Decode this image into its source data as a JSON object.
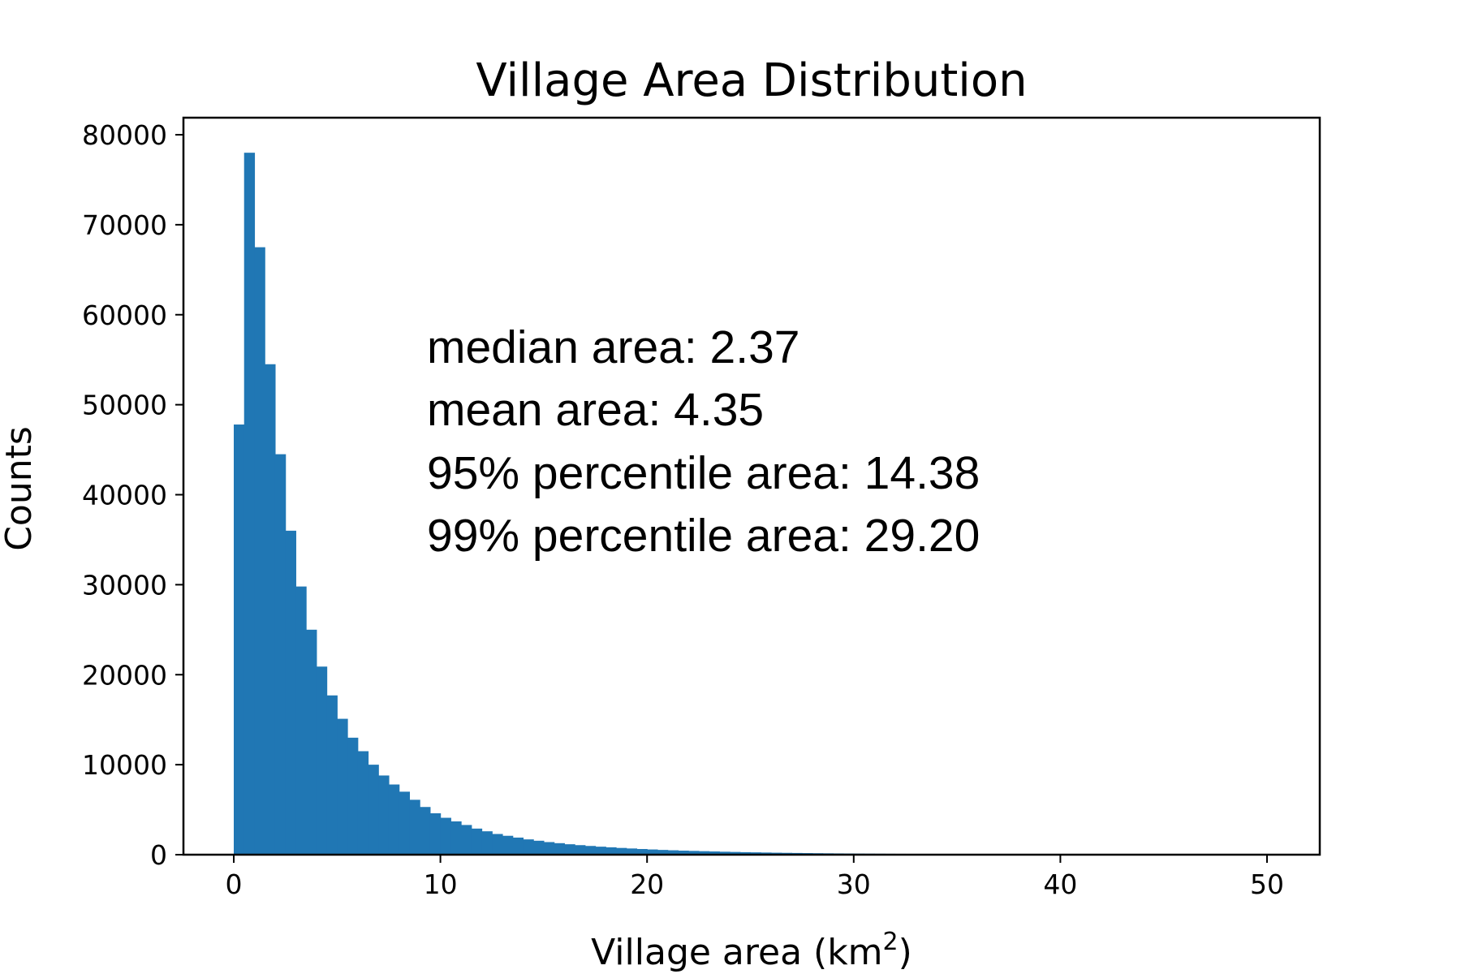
{
  "chart_data": {
    "type": "bar",
    "title": "Village Area Distribution",
    "xlabel": "Village area (km",
    "xlabel_sup": "2",
    "xlabel_end": ")",
    "ylabel": "Counts",
    "xlim": [
      -2.5,
      52.5
    ],
    "ylim": [
      0,
      80000
    ],
    "xticks": [
      0,
      10,
      20,
      30,
      40,
      50
    ],
    "yticks": [
      0,
      10000,
      20000,
      30000,
      40000,
      50000,
      60000,
      70000,
      80000
    ],
    "bin_width": 0.5,
    "bin_start": 0,
    "color": "#2077b4",
    "values": [
      47800,
      78000,
      67500,
      54500,
      44500,
      36000,
      29800,
      25000,
      20900,
      17700,
      15100,
      13000,
      11500,
      10000,
      8800,
      7800,
      7000,
      6100,
      5300,
      4600,
      4100,
      3700,
      3300,
      2900,
      2600,
      2300,
      2100,
      1900,
      1700,
      1550,
      1400,
      1280,
      1160,
      1060,
      970,
      890,
      820,
      750,
      690,
      630,
      580,
      530,
      490,
      450,
      420,
      390,
      360,
      330,
      305,
      280,
      260,
      240,
      220,
      205,
      190,
      176,
      163,
      151,
      140,
      130,
      121,
      113,
      105,
      98,
      91,
      85,
      79,
      74,
      69,
      64,
      60,
      56,
      52,
      48,
      45,
      42,
      39,
      36,
      33,
      31,
      29,
      27,
      25,
      23,
      21,
      20,
      18,
      17,
      16,
      15,
      14,
      13,
      12,
      11,
      10,
      10,
      9,
      8,
      8,
      7
    ],
    "annotations": [
      "median area: 2.37",
      "mean area: 4.35",
      "95% percentile area: 14.38",
      "99% percentile area: 29.20"
    ]
  }
}
